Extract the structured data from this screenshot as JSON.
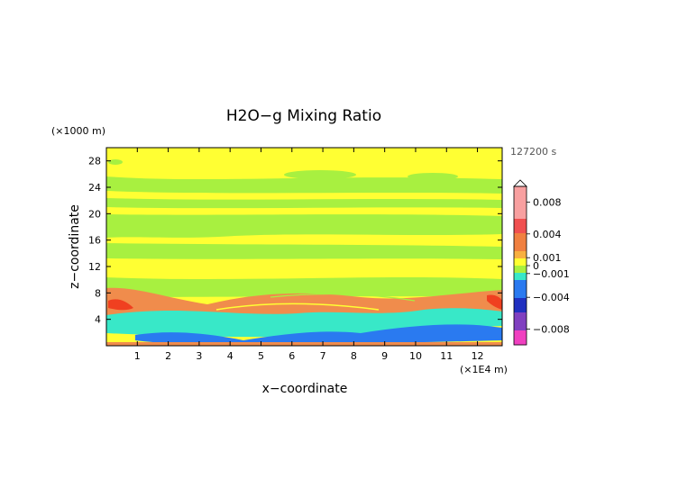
{
  "chart_data": {
    "type": "heatmap",
    "title": "H2O−g Mixing Ratio",
    "xlabel": "x−coordinate",
    "ylabel": "z−coordinate",
    "x_unit": "(×1E4 m)",
    "y_unit": "(×1000 m)",
    "time_label": "127200 s",
    "xlim": [
      0,
      12.8
    ],
    "ylim": [
      0,
      30
    ],
    "x_ticks": [
      1,
      2,
      3,
      4,
      5,
      6,
      7,
      8,
      9,
      10,
      11,
      12
    ],
    "y_ticks": [
      4,
      8,
      12,
      16,
      20,
      24,
      28
    ],
    "colorbar": {
      "tick_labels": [
        "0.008",
        "0.004",
        "0.001",
        "0",
        "−0.001",
        "−0.004",
        "−0.008"
      ],
      "tick_values": [
        0.008,
        0.004,
        0.001,
        0,
        -0.001,
        -0.004,
        -0.008
      ],
      "range": [
        -0.01,
        0.01
      ]
    },
    "colors": {
      "pos_small": "#ffff33",
      "neg_small": "#a8f040",
      "neg_mid": "#38e8c8",
      "neg_large": "#2a7af0",
      "pos_mid": "#f08c4c",
      "pos_large": "#f04020",
      "background": "#ffffff"
    },
    "regions": [
      {
        "name": "lower-moist-band",
        "sign": "positive",
        "level": "mid"
      },
      {
        "name": "upper-dry-band",
        "sign": "negative",
        "level": "small"
      },
      {
        "name": "surface-dry-layer",
        "sign": "negative",
        "level": "large"
      }
    ]
  }
}
